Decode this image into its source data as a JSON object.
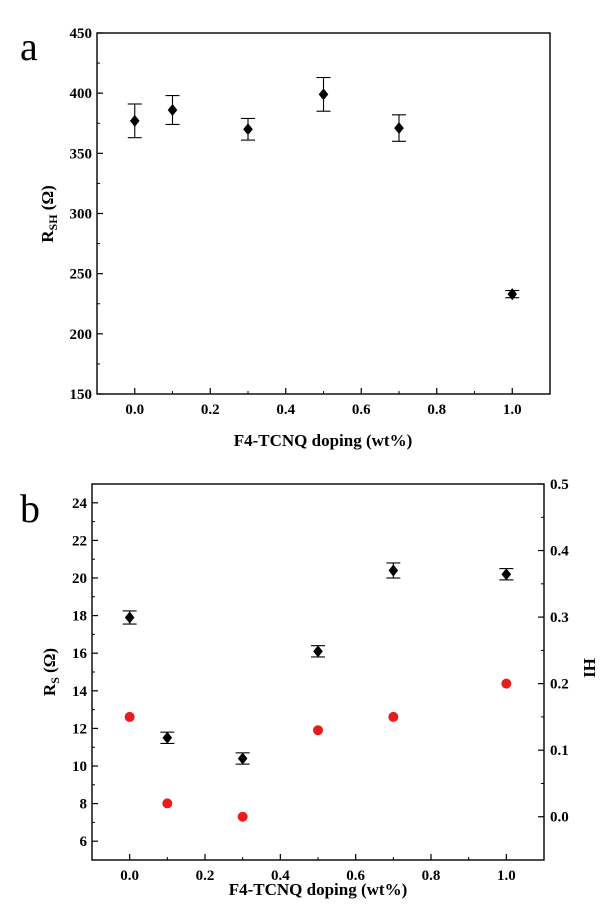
{
  "chart_data": [
    {
      "type": "scatter",
      "panel_label": "a",
      "xlabel": "F4-TCNQ doping (wt%)",
      "ylabel": {
        "main": "R",
        "sub": "SH",
        "unit": " (Ω)"
      },
      "xlim": [
        -0.1,
        1.1
      ],
      "ylim": [
        150,
        450
      ],
      "xticks": [
        0.0,
        0.2,
        0.4,
        0.6,
        0.8,
        1.0
      ],
      "xtick_labels": [
        "0.0",
        "0.2",
        "0.4",
        "0.6",
        "0.8",
        "1.0"
      ],
      "yticks": [
        150,
        200,
        250,
        300,
        350,
        400,
        450
      ],
      "ytick_labels": [
        "150",
        "200",
        "250",
        "300",
        "350",
        "400",
        "450"
      ],
      "grid": false,
      "series": [
        {
          "marker": "diamond",
          "color": "#000000",
          "x": [
            0.0,
            0.1,
            0.3,
            0.5,
            0.7,
            1.0
          ],
          "y": [
            377,
            386,
            370,
            399,
            371,
            233
          ],
          "err": [
            14,
            12,
            9,
            14,
            11,
            3
          ]
        }
      ]
    },
    {
      "type": "scatter",
      "panel_label": "b",
      "xlabel": "F4-TCNQ doping (wt%)",
      "ylabel": {
        "main": "R",
        "sub": "S",
        "unit": " (Ω)"
      },
      "y2label": "HI",
      "y2label_color": "#e0201b",
      "xlim": [
        -0.1,
        1.1
      ],
      "ylim": [
        5,
        25
      ],
      "y2lim": [
        -0.065,
        0.5
      ],
      "xticks": [
        0.0,
        0.2,
        0.4,
        0.6,
        0.8,
        1.0
      ],
      "xtick_labels": [
        "0.0",
        "0.2",
        "0.4",
        "0.6",
        "0.8",
        "1.0"
      ],
      "yticks": [
        6,
        8,
        10,
        12,
        14,
        16,
        18,
        20,
        22,
        24
      ],
      "ytick_labels": [
        "6",
        "8",
        "10",
        "12",
        "14",
        "16",
        "18",
        "20",
        "22",
        "24"
      ],
      "y2ticks": [
        0.0,
        0.1,
        0.2,
        0.3,
        0.4,
        0.5
      ],
      "y2tick_labels": [
        "0.0",
        "0.1",
        "0.2",
        "0.3",
        "0.4",
        "0.5"
      ],
      "grid": false,
      "series": [
        {
          "axis": "left",
          "marker": "diamond",
          "color": "#000000",
          "x": [
            0.0,
            0.1,
            0.3,
            0.5,
            0.7,
            1.0
          ],
          "y": [
            17.9,
            11.5,
            10.4,
            16.1,
            20.4,
            20.2
          ],
          "err": [
            0.35,
            0.3,
            0.3,
            0.3,
            0.4,
            0.3
          ]
        },
        {
          "axis": "right",
          "marker": "circle",
          "color": "#e81c1c",
          "x": [
            0.0,
            0.1,
            0.3,
            0.5,
            0.7,
            1.0
          ],
          "y": [
            0.15,
            0.02,
            0.0,
            0.13,
            0.15,
            0.2
          ]
        }
      ]
    }
  ]
}
